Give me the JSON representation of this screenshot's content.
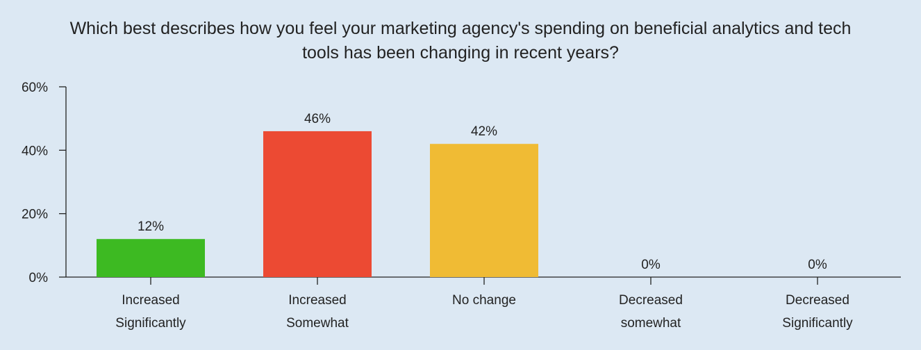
{
  "chart_data": {
    "type": "bar",
    "title": "Which best describes how you feel your marketing agency's spending on beneficial analytics and tech tools has been changing in recent years?",
    "title_lines": [
      "Which best describes how you feel your marketing agency's spending on beneficial analytics and tech",
      "tools has been changing in recent years?"
    ],
    "categories": [
      [
        "Increased",
        "Significantly"
      ],
      [
        "Increased",
        "Somewhat"
      ],
      [
        "No change"
      ],
      [
        "Decreased",
        "somewhat"
      ],
      [
        "Decreased",
        "Significantly"
      ]
    ],
    "values": [
      12,
      46,
      42,
      0,
      0
    ],
    "data_labels": [
      "12%",
      "46%",
      "42%",
      "0%",
      "0%"
    ],
    "colors": [
      "#3dba22",
      "#ec4a33",
      "#f0bb34",
      "#f0bb34",
      "#f0bb34"
    ],
    "ylim": [
      0,
      60
    ],
    "yticks": [
      0,
      20,
      40,
      60
    ],
    "ytick_labels": [
      "0%",
      "20%",
      "40%",
      "60%"
    ],
    "xlabel": "",
    "ylabel": "",
    "grid": false,
    "legend": "none"
  }
}
